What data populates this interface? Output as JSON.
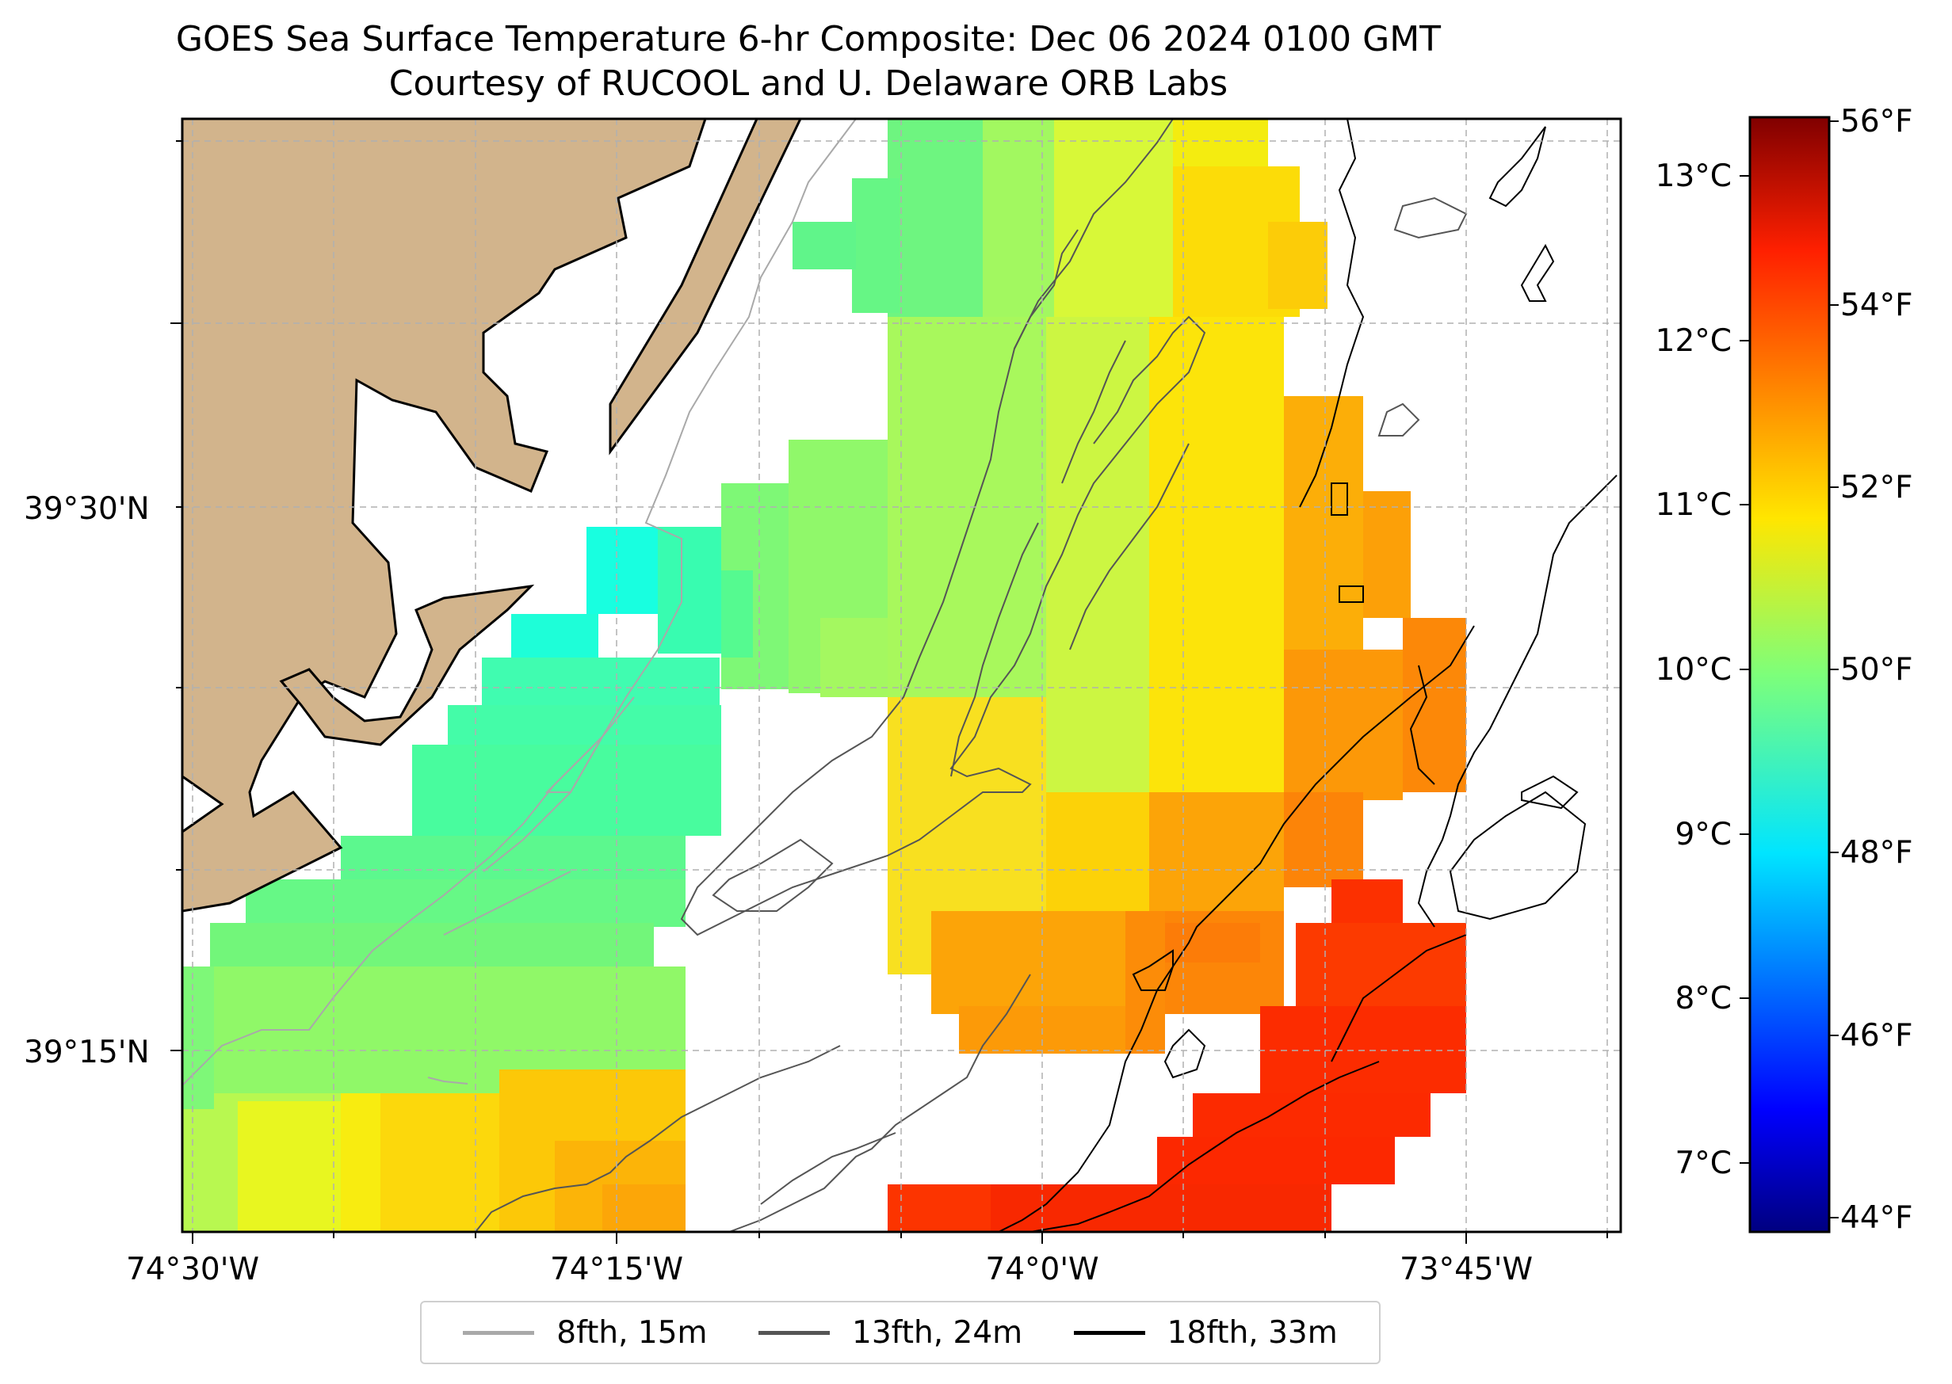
{
  "title": "GOES Sea Surface Temperature 6-hr Composite: Dec 06 2024 0100 GMT",
  "subtitle": "Courtesy of RUCOOL and U. Delaware ORB Labs",
  "lat_labels": [
    "39°30'N",
    "39°15'N"
  ],
  "lon_labels": [
    "74°30'W",
    "74°15'W",
    "74°0'W",
    "73°45'W"
  ],
  "colorbar": {
    "celsius_labels": [
      "13°C",
      "12°C",
      "11°C",
      "10°C",
      "9°C",
      "8°C",
      "7°C"
    ],
    "fahrenheit_labels": [
      "56°F",
      "54°F",
      "52°F",
      "50°F",
      "48°F",
      "46°F",
      "44°F"
    ],
    "colormap": "jet"
  },
  "legend": [
    {
      "label": "8fth, 15m",
      "color": "#a9a9a9"
    },
    {
      "label": "13fth, 24m",
      "color": "#555555"
    },
    {
      "label": "18fth, 33m",
      "color": "#000000"
    }
  ],
  "colors": {
    "land": "#d2b48c",
    "ocean": "#ffffff",
    "grid": "#b0b0b0"
  }
}
